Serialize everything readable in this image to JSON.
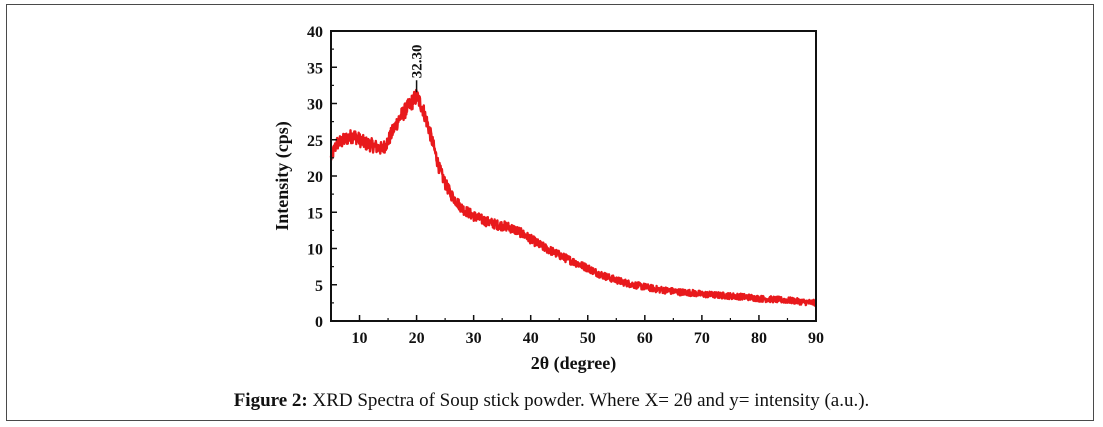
{
  "chart_data": {
    "type": "line",
    "xlabel": "2θ (degree)",
    "ylabel": "Intensity (cps)",
    "xlim": [
      5,
      90
    ],
    "ylim": [
      0,
      40
    ],
    "xticks": [
      10,
      20,
      30,
      40,
      50,
      60,
      70,
      80,
      90
    ],
    "yticks": [
      0,
      5,
      10,
      15,
      20,
      25,
      30,
      35,
      40
    ],
    "grid": false,
    "line_color": "#e8191c",
    "peak_annotation": {
      "label": "32.30",
      "x": 20,
      "y": 31
    },
    "series": [
      {
        "x": [
          5,
          6,
          7,
          8,
          9,
          10,
          11,
          12,
          13,
          14,
          15,
          16,
          17,
          18,
          19,
          20,
          21,
          22,
          23,
          24,
          25,
          26,
          27,
          28,
          29,
          30,
          32,
          34,
          36,
          38,
          40,
          42,
          44,
          46,
          48,
          50,
          52,
          54,
          56,
          58,
          60,
          62,
          64,
          66,
          68,
          70,
          72,
          74,
          76,
          78,
          80,
          82,
          84,
          86,
          88,
          90
        ],
        "y": [
          22.5,
          24.5,
          24.8,
          25.3,
          25.6,
          25.0,
          24.5,
          24.3,
          24.0,
          23.7,
          24.8,
          26.5,
          28.0,
          29.0,
          30.0,
          31.0,
          29.5,
          27.0,
          24.0,
          21.0,
          19.0,
          17.5,
          16.5,
          15.5,
          15.0,
          14.5,
          13.8,
          13.3,
          13.0,
          12.3,
          11.3,
          10.3,
          9.5,
          8.7,
          8.0,
          7.3,
          6.5,
          5.9,
          5.4,
          5.0,
          4.7,
          4.4,
          4.2,
          4.0,
          3.9,
          3.7,
          3.6,
          3.5,
          3.4,
          3.3,
          3.1,
          3.0,
          2.9,
          2.8,
          2.6,
          2.5
        ]
      }
    ]
  },
  "caption": {
    "label": "Figure 2:",
    "text": " XRD Spectra of Soup stick powder. Where X= 2θ and y= intensity (a.u.)."
  }
}
